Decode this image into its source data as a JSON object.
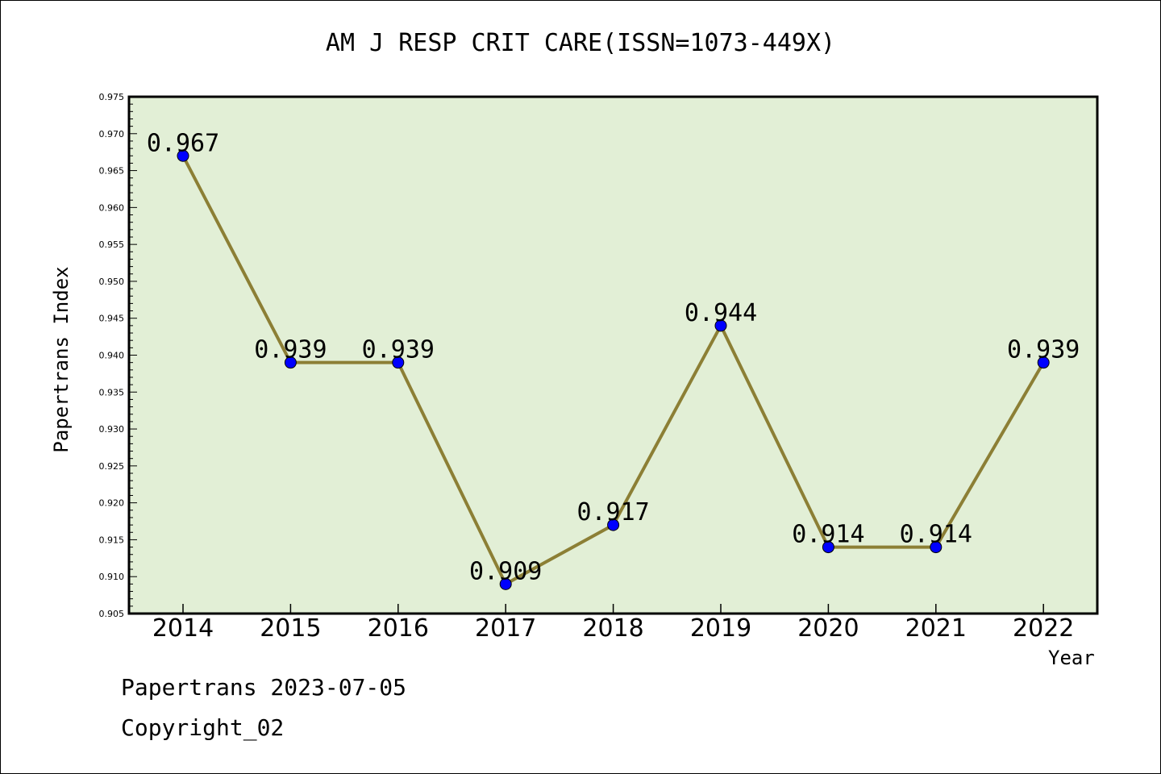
{
  "chart_data": {
    "type": "line",
    "title": "AM J RESP CRIT CARE(ISSN=1073-449X)",
    "xlabel": "Year",
    "ylabel": "Papertrans Index",
    "categories": [
      "2014",
      "2015",
      "2016",
      "2017",
      "2018",
      "2019",
      "2020",
      "2021",
      "2022"
    ],
    "series": [
      {
        "values": [
          0.967,
          0.939,
          0.939,
          0.909,
          0.917,
          0.944,
          0.914,
          0.914,
          0.939
        ]
      }
    ],
    "data_labels": [
      "0.967",
      "0.939",
      "0.939",
      "0.909",
      "0.917",
      "0.944",
      "0.914",
      "0.914",
      "0.939"
    ],
    "ylim": [
      0.905,
      0.975
    ],
    "yticks": [
      "0.905",
      "0.910",
      "0.915",
      "0.920",
      "0.925",
      "0.930",
      "0.935",
      "0.940",
      "0.945",
      "0.950",
      "0.955",
      "0.960",
      "0.965",
      "0.970",
      "0.975"
    ],
    "grid": false,
    "legend": "none",
    "colors": {
      "plot_background": "#e2efd6",
      "line": "#8c7f35",
      "marker": "#0000ff"
    }
  },
  "footer": {
    "line1": "Papertrans 2023-07-05",
    "line2": "Copyright_02"
  }
}
